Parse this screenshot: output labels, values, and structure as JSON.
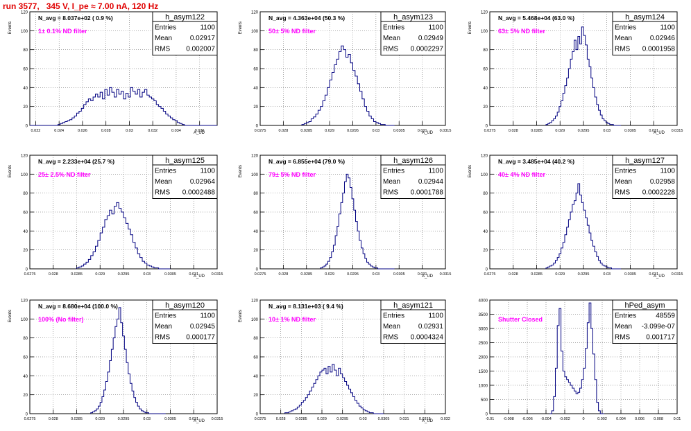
{
  "title": "run 3577,   345 V, I_pe ≈ 7.00 nA, 120 Hz",
  "chart_data": [
    {
      "type": "histogram",
      "name": "h_asym122",
      "stats": {
        "Entries": "1100",
        "Mean": "0.02917",
        "RMS": "0.002007"
      },
      "navg": "N_avg = 8.037e+02 ( 0.9 %)",
      "filter": "1± 0.1% ND filter",
      "xlabel": "A_UD",
      "ylabel": "Events",
      "xlim": [
        0.0215,
        0.0375
      ],
      "ylim": [
        0,
        120
      ],
      "yticks": [
        0,
        20,
        40,
        60,
        80,
        100,
        120
      ],
      "xticks": [
        0.022,
        0.024,
        0.026,
        0.028,
        0.03,
        0.032,
        0.034,
        0.036
      ],
      "xticklabels": [
        "0.022",
        "0.024",
        "0.026",
        "0.028",
        "0.03",
        "0.032",
        "0.034",
        "0.036"
      ],
      "bins": {
        "start": 0.0215,
        "width": 0.0002,
        "values": [
          0,
          0,
          0,
          0,
          0,
          0,
          0,
          0,
          0,
          0,
          0,
          0,
          1,
          2,
          3,
          4,
          5,
          6,
          8,
          10,
          13,
          15,
          18,
          22,
          25,
          28,
          26,
          30,
          33,
          30,
          35,
          28,
          38,
          32,
          40,
          35,
          30,
          38,
          33,
          36,
          28,
          34,
          30,
          40,
          36,
          33,
          38,
          30,
          35,
          38,
          32,
          30,
          28,
          26,
          22,
          20,
          18,
          15,
          12,
          10,
          8,
          6,
          5,
          3,
          2,
          1,
          0,
          0,
          0,
          0,
          0,
          0,
          0,
          0,
          0,
          0,
          0,
          0,
          0,
          0
        ]
      }
    },
    {
      "type": "histogram",
      "name": "h_asym123",
      "stats": {
        "Entries": "1100",
        "Mean": "0.02949",
        "RMS": "0.0002297"
      },
      "navg": "N_avg = 4.363e+04 (50.3 %)",
      "filter": "50± 5% ND filter",
      "xlabel": "A_UD",
      "ylabel": "Events",
      "xlim": [
        0.0275,
        0.0315
      ],
      "ylim": [
        0,
        120
      ],
      "yticks": [
        0,
        20,
        40,
        60,
        80,
        100,
        120
      ],
      "xticks": [
        0.0275,
        0.028,
        0.0285,
        0.029,
        0.0295,
        0.03,
        0.0305,
        0.031,
        0.0315
      ],
      "xticklabels": [
        "0.0275",
        "0.028",
        "0.0285",
        "0.029",
        "0.0295",
        "0.03",
        "0.0305",
        "0.031",
        "0.0315"
      ],
      "bins": {
        "start": 0.0284,
        "width": 5e-05,
        "values": [
          1,
          2,
          3,
          4,
          7,
          9,
          12,
          16,
          20,
          26,
          32,
          40,
          48,
          56,
          64,
          70,
          78,
          84,
          80,
          72,
          75,
          66,
          58,
          52,
          44,
          36,
          28,
          20,
          15,
          10,
          7,
          4,
          3,
          2,
          1,
          1,
          0,
          0,
          0,
          0
        ]
      }
    },
    {
      "type": "histogram",
      "name": "h_asym124",
      "stats": {
        "Entries": "1100",
        "Mean": "0.02946",
        "RMS": "0.0001958"
      },
      "navg": "N_avg = 5.468e+04 (63.0 %)",
      "filter": "63± 5% ND filter",
      "xlabel": "A_UD",
      "ylabel": "Events",
      "xlim": [
        0.0275,
        0.0315
      ],
      "ylim": [
        0,
        120
      ],
      "yticks": [
        0,
        20,
        40,
        60,
        80,
        100,
        120
      ],
      "xticks": [
        0.0275,
        0.028,
        0.0285,
        0.029,
        0.0295,
        0.03,
        0.0305,
        0.031,
        0.0315
      ],
      "xticklabels": [
        "0.0275",
        "0.028",
        "0.0285",
        "0.029",
        "0.0295",
        "0.03",
        "0.0305",
        "0.031",
        "0.0315"
      ],
      "bins": {
        "start": 0.0287,
        "width": 4e-05,
        "values": [
          1,
          2,
          3,
          5,
          7,
          10,
          14,
          20,
          26,
          34,
          42,
          50,
          60,
          70,
          78,
          90,
          80,
          94,
          86,
          104,
          95,
          85,
          70,
          62,
          50,
          40,
          30,
          22,
          16,
          11,
          7,
          5,
          3,
          2,
          1,
          1,
          0,
          0,
          0,
          0
        ]
      }
    },
    {
      "type": "histogram",
      "name": "h_asym125",
      "stats": {
        "Entries": "1100",
        "Mean": "0.02964",
        "RMS": "0.0002488"
      },
      "navg": "N_avg = 2.233e+04 (25.7 %)",
      "filter": "25± 2.5% ND filter",
      "xlabel": "A_UD",
      "ylabel": "Events",
      "xlim": [
        0.0275,
        0.0315
      ],
      "ylim": [
        0,
        120
      ],
      "yticks": [
        0,
        20,
        40,
        60,
        80,
        100,
        120
      ],
      "xticks": [
        0.0275,
        0.028,
        0.0285,
        0.029,
        0.0295,
        0.03,
        0.0305,
        0.031,
        0.0315
      ],
      "xticklabels": [
        "0.0275",
        "0.028",
        "0.0285",
        "0.029",
        "0.0295",
        "0.03",
        "0.0305",
        "0.031",
        "0.0315"
      ],
      "bins": {
        "start": 0.0285,
        "width": 5e-05,
        "values": [
          1,
          2,
          3,
          5,
          7,
          10,
          14,
          18,
          24,
          30,
          38,
          44,
          52,
          56,
          62,
          58,
          66,
          70,
          64,
          60,
          54,
          48,
          42,
          36,
          28,
          22,
          16,
          12,
          8,
          6,
          4,
          3,
          2,
          1,
          1,
          0,
          0,
          0,
          0,
          0
        ]
      }
    },
    {
      "type": "histogram",
      "name": "h_asym126",
      "stats": {
        "Entries": "1100",
        "Mean": "0.02944",
        "RMS": "0.0001788"
      },
      "navg": "N_avg = 6.855e+04 (79.0 %)",
      "filter": "79± 5% ND filter",
      "xlabel": "A_UD",
      "ylabel": "Events",
      "xlim": [
        0.0275,
        0.0315
      ],
      "ylim": [
        0,
        120
      ],
      "yticks": [
        0,
        20,
        40,
        60,
        80,
        100,
        120
      ],
      "xticks": [
        0.0275,
        0.028,
        0.0285,
        0.029,
        0.0295,
        0.03,
        0.0305,
        0.031,
        0.0315
      ],
      "xticklabels": [
        "0.0275",
        "0.028",
        "0.0285",
        "0.029",
        "0.0295",
        "0.03",
        "0.0305",
        "0.031",
        "0.0315"
      ],
      "bins": {
        "start": 0.0288,
        "width": 4e-05,
        "values": [
          1,
          2,
          3,
          5,
          8,
          12,
          18,
          25,
          35,
          45,
          58,
          70,
          80,
          92,
          100,
          96,
          86,
          74,
          62,
          50,
          40,
          30,
          22,
          16,
          11,
          7,
          5,
          3,
          2,
          1,
          1,
          0,
          0,
          0,
          0,
          0,
          0,
          0,
          0,
          0
        ]
      }
    },
    {
      "type": "histogram",
      "name": "h_asym127",
      "stats": {
        "Entries": "1100",
        "Mean": "0.02958",
        "RMS": "0.0002228"
      },
      "navg": "N_avg = 3.485e+04 (40.2 %)",
      "filter": "40± 4% ND filter",
      "xlabel": "A_UD",
      "ylabel": "Events",
      "xlim": [
        0.0275,
        0.0315
      ],
      "ylim": [
        0,
        120
      ],
      "yticks": [
        0,
        20,
        40,
        60,
        80,
        100,
        120
      ],
      "xticks": [
        0.0275,
        0.028,
        0.0285,
        0.029,
        0.0295,
        0.03,
        0.0305,
        0.031,
        0.0315
      ],
      "xticklabels": [
        "0.0275",
        "0.028",
        "0.0285",
        "0.029",
        "0.0295",
        "0.03",
        "0.0305",
        "0.031",
        "0.0315"
      ],
      "bins": {
        "start": 0.0287,
        "width": 4e-05,
        "values": [
          1,
          2,
          3,
          4,
          6,
          9,
          12,
          16,
          22,
          28,
          36,
          44,
          52,
          60,
          68,
          72,
          80,
          90,
          78,
          70,
          62,
          54,
          46,
          38,
          30,
          24,
          18,
          13,
          9,
          6,
          4,
          3,
          2,
          1,
          1,
          0,
          0,
          0,
          0,
          0
        ]
      }
    },
    {
      "type": "histogram",
      "name": "h_asym120",
      "stats": {
        "Entries": "1100",
        "Mean": "0.02945",
        "RMS": "0.000177"
      },
      "navg": "N_avg = 8.680e+04 (100.0 %)",
      "filter": "100% (No filter)",
      "xlabel": "A_UD",
      "ylabel": "Events",
      "xlim": [
        0.0275,
        0.0315
      ],
      "ylim": [
        0,
        120
      ],
      "yticks": [
        0,
        20,
        40,
        60,
        80,
        100,
        120
      ],
      "xticks": [
        0.0275,
        0.028,
        0.0285,
        0.029,
        0.0295,
        0.03,
        0.0305,
        0.031,
        0.0315
      ],
      "xticklabels": [
        "0.0275",
        "0.028",
        "0.0285",
        "0.029",
        "0.0295",
        "0.03",
        "0.0305",
        "0.031",
        "0.0315"
      ],
      "bins": {
        "start": 0.0288,
        "width": 4e-05,
        "values": [
          1,
          2,
          3,
          5,
          8,
          12,
          18,
          25,
          34,
          44,
          56,
          68,
          80,
          92,
          100,
          112,
          96,
          82,
          68,
          54,
          42,
          32,
          24,
          17,
          12,
          8,
          5,
          3,
          2,
          1,
          1,
          0,
          0,
          0,
          0,
          0,
          0,
          0,
          0,
          0
        ]
      }
    },
    {
      "type": "histogram",
      "name": "h_asym121",
      "stats": {
        "Entries": "1100",
        "Mean": "0.02931",
        "RMS": "0.0004324"
      },
      "navg": "N_avg = 8.131e+03 ( 9.4 %)",
      "filter": "10± 1% ND filter",
      "xlabel": "A_UD",
      "ylabel": "Events",
      "xlim": [
        0.0275,
        0.032
      ],
      "ylim": [
        0,
        120
      ],
      "yticks": [
        0,
        20,
        40,
        60,
        80,
        100,
        120
      ],
      "xticks": [
        0.0275,
        0.028,
        0.0285,
        0.029,
        0.0295,
        0.03,
        0.0305,
        0.031,
        0.0315,
        0.032
      ],
      "xticklabels": [
        "0.0275",
        "0.028",
        "0.0285",
        "0.029",
        "0.0295",
        "0.03",
        "0.0305",
        "0.031",
        "0.0315",
        "0.032"
      ],
      "bins": {
        "start": 0.0281,
        "width": 5e-05,
        "values": [
          1,
          1,
          2,
          3,
          4,
          5,
          7,
          9,
          12,
          14,
          17,
          20,
          24,
          28,
          32,
          36,
          40,
          44,
          46,
          48,
          42,
          50,
          44,
          52,
          46,
          40,
          48,
          42,
          38,
          34,
          30,
          26,
          22,
          18,
          14,
          11,
          8,
          6,
          4,
          3,
          2,
          1,
          1,
          0,
          0,
          0,
          0,
          0
        ]
      }
    },
    {
      "type": "histogram",
      "name": "hPed_asym",
      "stats": {
        "Entries": "48559",
        "Mean": "-3.099e-07",
        "RMS": "0.001717"
      },
      "navg": "",
      "filter": "Shutter Closed",
      "xlabel": "",
      "ylabel": "",
      "xlim": [
        -0.01,
        0.01
      ],
      "ylim": [
        0,
        4000
      ],
      "yticks": [
        0,
        500,
        1000,
        1500,
        2000,
        2500,
        3000,
        3500,
        4000
      ],
      "xticks": [
        -0.01,
        -0.008,
        -0.006,
        -0.004,
        -0.002,
        0,
        0.002,
        0.004,
        0.006,
        0.008,
        0.01
      ],
      "xticklabels": [
        "-0.01",
        "-0.008",
        "-0.006",
        "-0.004",
        "-0.002",
        "0",
        "0.002",
        "0.004",
        "0.006",
        "0.008",
        "0.01"
      ],
      "bins": {
        "start": -0.0036,
        "width": 0.0002,
        "values": [
          0,
          100,
          600,
          1600,
          3100,
          3700,
          2200,
          1500,
          1300,
          1200,
          1100,
          1000,
          900,
          800,
          700,
          750,
          900,
          1200,
          1600,
          2300,
          3200,
          3900,
          3000,
          2100,
          1200,
          400,
          100,
          0,
          0
        ]
      }
    }
  ]
}
